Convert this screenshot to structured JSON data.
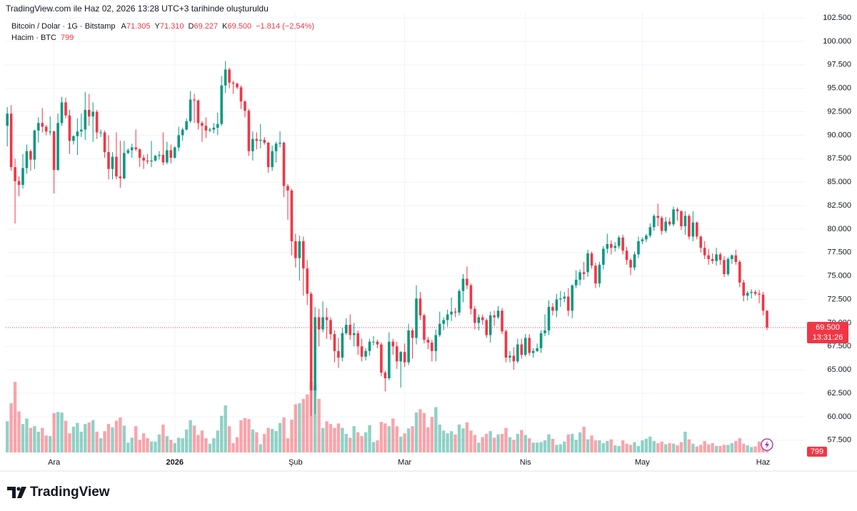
{
  "header": "TradingView.com ile Haz 02, 2026 13:28 UTC+3 tarihinde oluşturuldu",
  "legend": {
    "symbol": "Bitcoin / Dolar · 1G · Bitstamp",
    "ohlc": [
      {
        "label": "A",
        "value": "71.305"
      },
      {
        "label": "Y",
        "value": "71.310"
      },
      {
        "label": "D",
        "value": "69.227"
      },
      {
        "label": "K",
        "value": "69.500"
      }
    ],
    "change": "−1.814 (−2,54%)",
    "volume_name": "Hacim · BTC",
    "volume_value": "799"
  },
  "logo": "TradingView",
  "chart_data": {
    "type": "candlestick",
    "up_color": "#089981",
    "down_color": "#f23645",
    "grid": true,
    "xlim": [
      -0.4,
      204.9
    ],
    "xticks": [
      {
        "value": 12,
        "label": "Ara"
      },
      {
        "value": 43,
        "label": "2026"
      },
      {
        "value": 74,
        "label": "Şub"
      },
      {
        "value": 102,
        "label": "Mar"
      },
      {
        "value": 133,
        "label": "Nis"
      },
      {
        "value": 163,
        "label": "May"
      },
      {
        "value": 194,
        "label": "Haz"
      }
    ],
    "ylim": [
      56190,
      103040
    ],
    "yticks": [
      {
        "value": 57500,
        "label": "57.500"
      },
      {
        "value": 60000,
        "label": "60.000"
      },
      {
        "value": 62500,
        "label": "62.500"
      },
      {
        "value": 65000,
        "label": "65.000"
      },
      {
        "value": 67500,
        "label": "67.500"
      },
      {
        "value": 70000,
        "label": "70.000"
      },
      {
        "value": 72500,
        "label": "72.500"
      },
      {
        "value": 75000,
        "label": "75.000"
      },
      {
        "value": 77500,
        "label": "77.500"
      },
      {
        "value": 80000,
        "label": "80.000"
      },
      {
        "value": 82500,
        "label": "82.500"
      },
      {
        "value": 85000,
        "label": "85.000"
      },
      {
        "value": 87500,
        "label": "87.500"
      },
      {
        "value": 90000,
        "label": "90.000"
      },
      {
        "value": 92500,
        "label": "92.500"
      },
      {
        "value": 95000,
        "label": "95.000"
      },
      {
        "value": 97500,
        "label": "97.500"
      },
      {
        "value": 100000,
        "label": "100.000"
      },
      {
        "value": 102500,
        "label": "102.500"
      }
    ],
    "last_price": {
      "value": 69500,
      "label": "69.500"
    },
    "countdown": "13:31:26",
    "vlim": [
      0,
      15000
    ],
    "last_volume": 799,
    "candles": [
      [
        91000,
        93000,
        88800,
        92300
      ],
      [
        92300,
        93200,
        86200,
        86600
      ],
      [
        86600,
        87500,
        80600,
        85100
      ],
      [
        85100,
        85600,
        83500,
        84700
      ],
      [
        84700,
        88000,
        84300,
        86500
      ],
      [
        86500,
        89000,
        85900,
        88300
      ],
      [
        88300,
        88500,
        86200,
        87400
      ],
      [
        87400,
        90600,
        86400,
        90500
      ],
      [
        90500,
        91900,
        89200,
        91300
      ],
      [
        91300,
        92900,
        90300,
        90900
      ],
      [
        90900,
        91100,
        90000,
        90400
      ],
      [
        90400,
        92000,
        90000,
        90400
      ],
      [
        90400,
        90500,
        83800,
        86300
      ],
      [
        86300,
        92300,
        86200,
        91300
      ],
      [
        91300,
        94100,
        91000,
        93500
      ],
      [
        93500,
        94000,
        91800,
        92100
      ],
      [
        92100,
        92700,
        88000,
        89400
      ],
      [
        89400,
        90000,
        89000,
        89900
      ],
      [
        89900,
        91800,
        87900,
        90400
      ],
      [
        90400,
        92300,
        89800,
        90600
      ],
      [
        90600,
        94600,
        89500,
        92700
      ],
      [
        92700,
        94400,
        91000,
        92000
      ],
      [
        92000,
        93500,
        89300,
        92500
      ],
      [
        92500,
        92700,
        89600,
        90300
      ],
      [
        90300,
        90600,
        89800,
        90300
      ],
      [
        90300,
        90500,
        87600,
        88200
      ],
      [
        88200,
        90000,
        85300,
        86400
      ],
      [
        86400,
        88200,
        85300,
        87700
      ],
      [
        87700,
        90300,
        85300,
        85600
      ],
      [
        85600,
        89400,
        84400,
        85400
      ],
      [
        85400,
        89400,
        85300,
        88100
      ],
      [
        88100,
        88600,
        88000,
        88400
      ],
      [
        88400,
        89100,
        87600,
        88700
      ],
      [
        88700,
        90600,
        88300,
        88500
      ],
      [
        88500,
        88600,
        86600,
        87600
      ],
      [
        87600,
        87900,
        86400,
        87300
      ],
      [
        87300,
        88000,
        86900,
        87200
      ],
      [
        87200,
        89400,
        86600,
        87300
      ],
      [
        87300,
        87900,
        87200,
        87800
      ],
      [
        87800,
        88300,
        87400,
        87900
      ],
      [
        87900,
        90300,
        86800,
        87100
      ],
      [
        87100,
        89300,
        86900,
        88400
      ],
      [
        88400,
        89000,
        87000,
        87600
      ],
      [
        87600,
        88800,
        87500,
        88700
      ],
      [
        88700,
        90900,
        88300,
        90000
      ],
      [
        90000,
        90800,
        89400,
        90600
      ],
      [
        90600,
        91800,
        90500,
        91500
      ],
      [
        91500,
        94700,
        91300,
        93800
      ],
      [
        93800,
        94400,
        91300,
        93700
      ],
      [
        93700,
        93800,
        90600,
        91300
      ],
      [
        91300,
        91500,
        89300,
        91000
      ],
      [
        91000,
        91900,
        89700,
        90500
      ],
      [
        90500,
        90800,
        90300,
        90600
      ],
      [
        90600,
        91300,
        90200,
        90800
      ],
      [
        90800,
        92400,
        90000,
        91200
      ],
      [
        91200,
        96300,
        91000,
        95300
      ],
      [
        95300,
        97900,
        94500,
        97000
      ],
      [
        97000,
        97200,
        95000,
        95600
      ],
      [
        95600,
        95800,
        94400,
        95500
      ],
      [
        95500,
        95600,
        94900,
        95100
      ],
      [
        95100,
        95300,
        92800,
        93600
      ],
      [
        93600,
        93700,
        91900,
        92600
      ],
      [
        92600,
        92800,
        87800,
        88300
      ],
      [
        88300,
        90400,
        87300,
        89600
      ],
      [
        89600,
        90300,
        88500,
        89400
      ],
      [
        89400,
        91200,
        88600,
        89500
      ],
      [
        89500,
        89800,
        89000,
        89200
      ],
      [
        89200,
        89300,
        86000,
        86600
      ],
      [
        86600,
        88900,
        86200,
        88300
      ],
      [
        88300,
        89300,
        87100,
        89100
      ],
      [
        89100,
        90400,
        88700,
        89200
      ],
      [
        89200,
        89300,
        83400,
        84600
      ],
      [
        84600,
        84800,
        81000,
        84100
      ],
      [
        84100,
        84300,
        77200,
        78700
      ],
      [
        78700,
        79500,
        75900,
        76900
      ],
      [
        76900,
        79300,
        74500,
        78700
      ],
      [
        78700,
        79200,
        72900,
        75800
      ],
      [
        75800,
        76700,
        71900,
        73100
      ],
      [
        73100,
        73300,
        60100,
        62800
      ],
      [
        62800,
        71700,
        60300,
        70600
      ],
      [
        70600,
        71500,
        67500,
        69300
      ],
      [
        69300,
        72300,
        69000,
        70600
      ],
      [
        70600,
        71600,
        68300,
        70300
      ],
      [
        70300,
        70600,
        68200,
        68800
      ],
      [
        68800,
        69200,
        65800,
        67000
      ],
      [
        67000,
        68400,
        65200,
        66300
      ],
      [
        66300,
        69500,
        65900,
        68900
      ],
      [
        68900,
        70500,
        68700,
        69800
      ],
      [
        69800,
        70900,
        68200,
        68700
      ],
      [
        68700,
        70000,
        67500,
        68900
      ],
      [
        68900,
        69200,
        66600,
        67500
      ],
      [
        67500,
        68300,
        65900,
        66400
      ],
      [
        66400,
        67300,
        66000,
        67000
      ],
      [
        67000,
        68300,
        66500,
        68000
      ],
      [
        68000,
        68600,
        67600,
        68000
      ],
      [
        68000,
        68200,
        67300,
        67700
      ],
      [
        67700,
        67900,
        64300,
        64700
      ],
      [
        64700,
        64900,
        62700,
        64100
      ],
      [
        64100,
        69000,
        63900,
        68000
      ],
      [
        68000,
        68300,
        66600,
        67500
      ],
      [
        67500,
        68000,
        65100,
        65900
      ],
      [
        65900,
        67000,
        63100,
        66900
      ],
      [
        66900,
        67800,
        65300,
        65800
      ],
      [
        65800,
        69900,
        65500,
        69200
      ],
      [
        69200,
        69400,
        66200,
        68400
      ],
      [
        68400,
        74000,
        67700,
        72600
      ],
      [
        72600,
        73300,
        70300,
        70800
      ],
      [
        70800,
        71000,
        67800,
        68200
      ],
      [
        68200,
        68500,
        67200,
        67900
      ],
      [
        67900,
        68200,
        65900,
        67000
      ],
      [
        67000,
        69300,
        65900,
        68700
      ],
      [
        68700,
        71200,
        68500,
        69900
      ],
      [
        69900,
        70600,
        69200,
        70300
      ],
      [
        70300,
        71400,
        69600,
        70900
      ],
      [
        70900,
        72700,
        70200,
        71200
      ],
      [
        71200,
        71600,
        70600,
        71100
      ],
      [
        71100,
        73600,
        70800,
        73400
      ],
      [
        73400,
        75200,
        72200,
        74700
      ],
      [
        74700,
        76000,
        73600,
        74000
      ],
      [
        74000,
        74200,
        70900,
        71500
      ],
      [
        71500,
        71800,
        69300,
        70000
      ],
      [
        70000,
        70900,
        69200,
        70600
      ],
      [
        70600,
        70900,
        69800,
        70300
      ],
      [
        70300,
        70500,
        68400,
        68700
      ],
      [
        68700,
        71200,
        67900,
        70800
      ],
      [
        70800,
        71300,
        69700,
        70600
      ],
      [
        70600,
        71800,
        70400,
        71300
      ],
      [
        71300,
        71600,
        68800,
        69100
      ],
      [
        69100,
        69300,
        65800,
        66300
      ],
      [
        66300,
        67000,
        65800,
        66500
      ],
      [
        66500,
        67400,
        65000,
        65900
      ],
      [
        65900,
        68300,
        65700,
        67700
      ],
      [
        67700,
        68300,
        66200,
        66600
      ],
      [
        66600,
        68800,
        66400,
        68400
      ],
      [
        68400,
        68800,
        66500,
        66800
      ],
      [
        66800,
        67300,
        66300,
        67000
      ],
      [
        67000,
        67800,
        66900,
        67300
      ],
      [
        67300,
        69200,
        66800,
        68900
      ],
      [
        68900,
        70900,
        68600,
        69200
      ],
      [
        69200,
        72400,
        68700,
        71700
      ],
      [
        71700,
        72100,
        70800,
        71300
      ],
      [
        71300,
        73100,
        70600,
        72500
      ],
      [
        72500,
        73400,
        71700,
        72600
      ],
      [
        72600,
        73300,
        72200,
        72800
      ],
      [
        72800,
        73700,
        70700,
        71300
      ],
      [
        71300,
        74100,
        70500,
        74000
      ],
      [
        74000,
        75600,
        73700,
        74600
      ],
      [
        74600,
        75700,
        74000,
        75400
      ],
      [
        75400,
        76500,
        74600,
        75200
      ],
      [
        75400,
        77800,
        74900,
        77400
      ],
      [
        77400,
        77600,
        75800,
        76100
      ],
      [
        76100,
        76400,
        73700,
        74200
      ],
      [
        74200,
        76500,
        73800,
        76200
      ],
      [
        76200,
        78200,
        75700,
        77900
      ],
      [
        77900,
        79500,
        77400,
        78400
      ],
      [
        78400,
        78800,
        77300,
        78000
      ],
      [
        78000,
        78600,
        77600,
        78200
      ],
      [
        78200,
        79300,
        77900,
        79100
      ],
      [
        79100,
        79400,
        77300,
        77700
      ],
      [
        77700,
        78100,
        76200,
        76700
      ],
      [
        76700,
        76900,
        75100,
        75900
      ],
      [
        75900,
        77600,
        75600,
        77300
      ],
      [
        77300,
        79200,
        76900,
        78700
      ],
      [
        78700,
        79100,
        78400,
        78900
      ],
      [
        78900,
        79500,
        78600,
        79300
      ],
      [
        79300,
        80600,
        79100,
        80200
      ],
      [
        80200,
        81600,
        79800,
        81400
      ],
      [
        81400,
        82700,
        80300,
        81200
      ],
      [
        81200,
        81400,
        79400,
        79800
      ],
      [
        79800,
        81300,
        79600,
        80800
      ],
      [
        80800,
        81200,
        80300,
        80500
      ],
      [
        80500,
        82400,
        80300,
        82100
      ],
      [
        82100,
        82300,
        80900,
        81900
      ],
      [
        81900,
        82000,
        79900,
        80300
      ],
      [
        80300,
        81900,
        79400,
        81400
      ],
      [
        81400,
        81600,
        78900,
        79200
      ],
      [
        79200,
        81900,
        78700,
        80700
      ],
      [
        80700,
        80800,
        78900,
        79200
      ],
      [
        79200,
        79300,
        77500,
        78000
      ],
      [
        78000,
        78700,
        76800,
        77200
      ],
      [
        77200,
        77900,
        76200,
        76800
      ],
      [
        76800,
        77400,
        76300,
        76600
      ],
      [
        76600,
        78000,
        76100,
        77300
      ],
      [
        77300,
        77500,
        76200,
        76700
      ],
      [
        76700,
        77100,
        74900,
        75200
      ],
      [
        75200,
        77000,
        75000,
        76800
      ],
      [
        76800,
        77300,
        76300,
        77200
      ],
      [
        77200,
        77800,
        76200,
        76500
      ],
      [
        76500,
        76700,
        73800,
        74300
      ],
      [
        74300,
        74600,
        72300,
        72900
      ],
      [
        72900,
        73400,
        72400,
        73200
      ],
      [
        73200,
        73600,
        72600,
        73300
      ],
      [
        73300,
        73500,
        72900,
        73100
      ],
      [
        73100,
        73500,
        72100,
        73000
      ],
      [
        73000,
        73300,
        70800,
        71300
      ],
      [
        71305,
        71310,
        69227,
        69500
      ]
    ],
    "volume": [
      5700,
      9000,
      12900,
      7500,
      5200,
      6200,
      4500,
      4800,
      3800,
      4500,
      3100,
      3000,
      7200,
      7400,
      7300,
      5800,
      3500,
      4700,
      5400,
      3800,
      5200,
      5500,
      5900,
      3800,
      2600,
      3900,
      5200,
      4600,
      5800,
      6400,
      4900,
      1800,
      2700,
      4800,
      2300,
      3500,
      2600,
      2000,
      2000,
      3300,
      5100,
      3000,
      2300,
      1700,
      2700,
      2600,
      4200,
      5900,
      4900,
      3200,
      4000,
      2600,
      1600,
      2600,
      4000,
      6700,
      8600,
      4800,
      1700,
      2800,
      5900,
      6300,
      6100,
      4200,
      3700,
      1500,
      3400,
      4500,
      4300,
      3900,
      5400,
      6400,
      2600,
      6000,
      8800,
      9000,
      9800,
      10600,
      12900,
      12200,
      9800,
      4500,
      5700,
      5200,
      4500,
      5300,
      4500,
      3400,
      2700,
      4800,
      3700,
      3000,
      3700,
      5000,
      1900,
      2200,
      5600,
      5300,
      4800,
      6200,
      4800,
      2900,
      3500,
      4400,
      4800,
      7300,
      7900,
      7200,
      4600,
      6500,
      8300,
      5100,
      4000,
      3500,
      3900,
      3300,
      5100,
      4400,
      5500,
      4000,
      3200,
      1800,
      2800,
      3400,
      3900,
      2700,
      3300,
      3400,
      4500,
      2800,
      2300,
      3400,
      4100,
      3200,
      2600,
      1800,
      1800,
      1900,
      2200,
      3300,
      2500,
      1400,
      1500,
      2000,
      3300,
      3400,
      2300,
      3700,
      4700,
      2400,
      3100,
      2200,
      2200,
      1700,
      2100,
      2400,
      1300,
      1200,
      2200,
      1600,
      1400,
      1900,
      1200,
      2200,
      2500,
      2900,
      2100,
      1700,
      2000,
      1500,
      1700,
      1600,
      1300,
      1900,
      3800,
      2400,
      1600,
      1100,
      1400,
      2100,
      1500,
      1700,
      1200,
      1200,
      1400,
      1400,
      1700,
      2100,
      2600,
      1600,
      1300,
      1000,
      1100,
      2000,
      1000,
      799
    ]
  }
}
